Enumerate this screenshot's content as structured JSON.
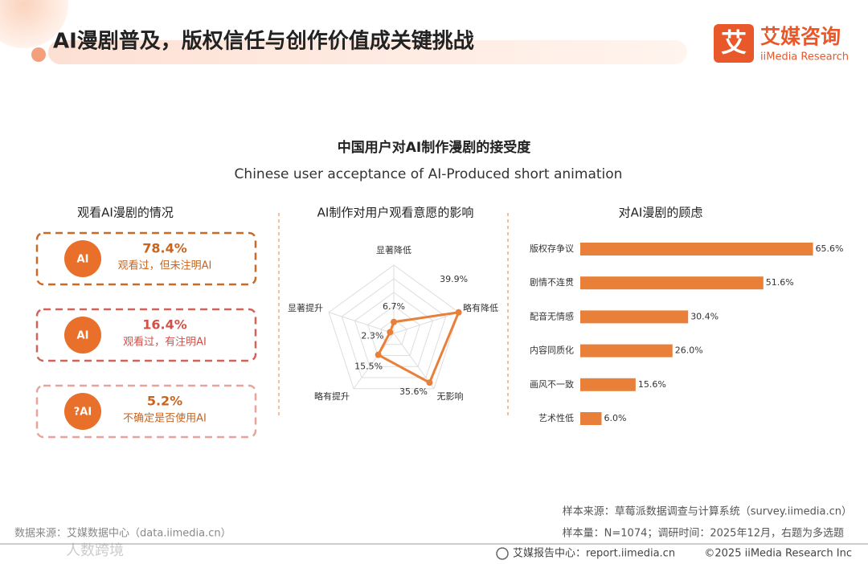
{
  "header": {
    "title": "AI漫剧普及，版权信任与创作价值成关键挑战",
    "logo_mark": "艾",
    "logo_name": "艾媒咨询",
    "logo_sub": "iiMedia Research"
  },
  "section": {
    "title": "中国用户对AI制作漫剧的接受度",
    "subtitle": "Chinese user acceptance of AI-Produced short animation"
  },
  "chart_data": [
    {
      "type": "stat-list",
      "title": "观看AI漫剧的情况",
      "items": [
        {
          "icon": "AI",
          "value": "78.4%",
          "label": "观看过，但未注明AI",
          "color": "#c86a28"
        },
        {
          "icon": "AI",
          "value": "16.4%",
          "label": "观看过，有注明AI",
          "color": "#d2625a"
        },
        {
          "icon": "?AI",
          "value": "5.2%",
          "label": "不确定是否使用AI",
          "color": "#e8a49a"
        }
      ]
    },
    {
      "type": "radar",
      "title": "AI制作对用户观看意愿的影响",
      "categories": [
        "显著降低",
        "略有降低",
        "无影响",
        "略有提升",
        "显著提升"
      ],
      "values": [
        6.7,
        39.9,
        35.6,
        15.5,
        2.3
      ],
      "value_labels": [
        "6.7%",
        "39.9%",
        "35.6%",
        "15.5%",
        "2.3%"
      ],
      "rlim": [
        0,
        40
      ],
      "rticks": [
        8,
        16,
        24,
        32,
        40
      ],
      "color": "#e8803a"
    },
    {
      "type": "bar",
      "orientation": "horizontal",
      "title": "对AI漫剧的顾虑",
      "categories": [
        "版权存争议",
        "剧情不连贯",
        "配音无情感",
        "内容同质化",
        "画风不一致",
        "艺术性低"
      ],
      "values": [
        65.6,
        51.6,
        30.4,
        26.0,
        15.6,
        6.0
      ],
      "value_labels": [
        "65.6%",
        "51.6%",
        "30.4%",
        "26.0%",
        "15.6%",
        "6.0%"
      ],
      "xlim": [
        0,
        70
      ],
      "color": "#e8803a"
    }
  ],
  "footer": {
    "notes": [
      "样本来源：草莓派数据调查与计算系统（survey.iimedia.cn）",
      "样本量：N=1074；调研时间：2025年12月，右题为多选题"
    ],
    "source": "数据来源：艾媒数据中心（data.iimedia.cn）",
    "report": "艾媒报告中心：report.iimedia.cn",
    "copyright": "©2025  iiMedia Research  Inc",
    "watermark": "人数跨境"
  }
}
